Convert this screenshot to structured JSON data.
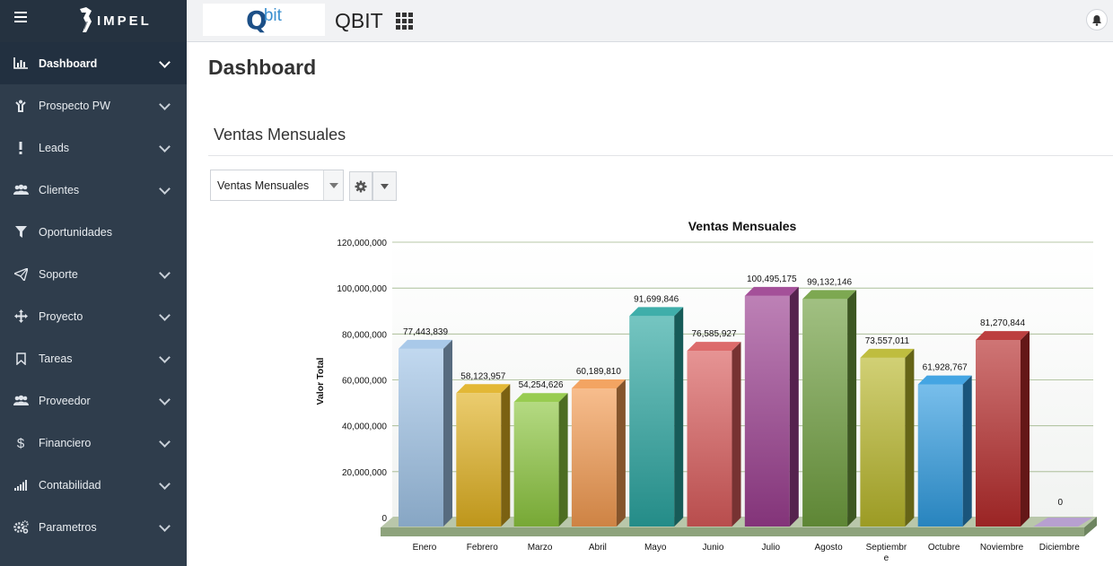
{
  "sidebar": {
    "brand": "IMPEL",
    "items": [
      {
        "label": "Dashboard",
        "icon": "bar-chart-icon",
        "chevron": true,
        "active": true
      },
      {
        "label": "Prospecto PW",
        "icon": "person-icon",
        "chevron": true
      },
      {
        "label": "Leads",
        "icon": "exclamation-icon",
        "chevron": true
      },
      {
        "label": "Clientes",
        "icon": "users-icon",
        "chevron": true
      },
      {
        "label": "Oportunidades",
        "icon": "filter-icon",
        "chevron": false
      },
      {
        "label": "Soporte",
        "icon": "paper-plane-icon",
        "chevron": true
      },
      {
        "label": "Proyecto",
        "icon": "move-arrows-icon",
        "chevron": true
      },
      {
        "label": "Tareas",
        "icon": "bookmark-icon",
        "chevron": true
      },
      {
        "label": "Proveedor",
        "icon": "users-icon",
        "chevron": true
      },
      {
        "label": "Financiero",
        "icon": "dollar-icon",
        "chevron": true
      },
      {
        "label": "Contabilidad",
        "icon": "signal-icon",
        "chevron": true
      },
      {
        "label": "Parametros",
        "icon": "gears-icon",
        "chevron": true
      }
    ]
  },
  "topbar": {
    "logo_q": "Q",
    "logo_bit": "bit",
    "app_title": "QBIT"
  },
  "main": {
    "page_title": "Dashboard",
    "section_title": "Ventas Mensuales",
    "select_value": "Ventas Mensuales"
  },
  "colors": {
    "sidebar_bg": "#2f3d4c",
    "sidebar_active": "#223040",
    "gridline": "#9fb58a"
  },
  "chart_data": {
    "type": "bar",
    "title": "Ventas Mensuales",
    "ylabel": "Valor Total",
    "xlabel": "",
    "ylim": [
      0,
      120000000
    ],
    "yticks": [
      0,
      20000000,
      40000000,
      60000000,
      80000000,
      100000000,
      120000000
    ],
    "ytick_labels": [
      "0",
      "20,000,000",
      "40,000,000",
      "60,000,000",
      "80,000,000",
      "100,000,000",
      "120,000,000"
    ],
    "categories": [
      "Enero",
      "Febrero",
      "Marzo",
      "Abril",
      "Mayo",
      "Junio",
      "Julio",
      "Agosto",
      "Septiembre",
      "Octubre",
      "Noviembre",
      "Diciembre"
    ],
    "values": [
      77443839,
      58123957,
      54254626,
      60189810,
      91699846,
      76585927,
      100495175,
      99132146,
      73557011,
      61928767,
      81270844,
      0
    ],
    "value_labels": [
      "77,443,839",
      "58,123,957",
      "54,254,626",
      "60,189,810",
      "91,699,846",
      "76,585,927",
      "100,495,175",
      "99,132,146",
      "73,557,011",
      "61,928,767",
      "81,270,844",
      "0"
    ],
    "bar_colors": [
      "#9fc3e6",
      "#e0b020",
      "#8cc63e",
      "#f29a50",
      "#2aa5a0",
      "#d85a5a",
      "#9a3d8e",
      "#6f9e3e",
      "#b8b62a",
      "#2f9be0",
      "#b52a2a",
      "#b7a0d0"
    ]
  }
}
